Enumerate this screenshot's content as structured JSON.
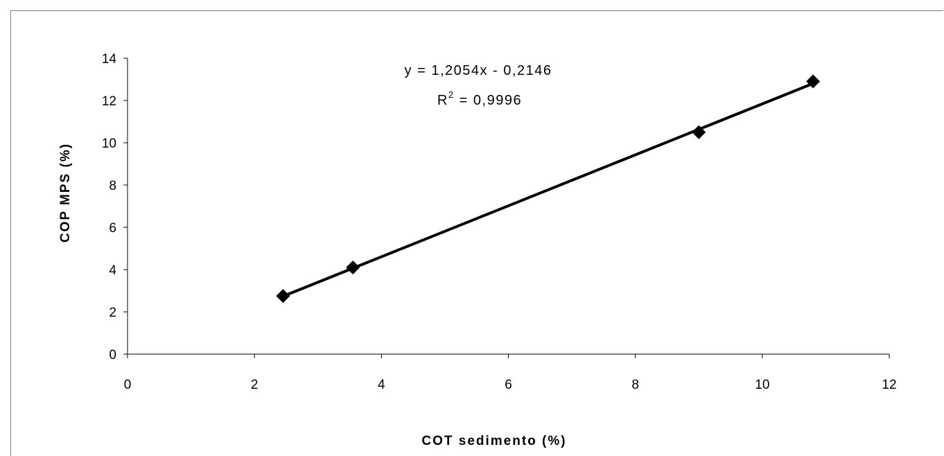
{
  "chart_data": {
    "type": "scatter",
    "xlabel": "COT sedimento (%)",
    "ylabel": "COP MPS (%)",
    "xlim": [
      0,
      12
    ],
    "ylim": [
      0,
      14
    ],
    "xticks": [
      0,
      2,
      4,
      6,
      8,
      10,
      12
    ],
    "yticks": [
      0,
      2,
      4,
      6,
      8,
      10,
      12,
      14
    ],
    "grid": false,
    "series": [
      {
        "x": [
          2.45,
          3.55,
          9.0,
          10.8
        ],
        "y": [
          2.75,
          4.1,
          10.5,
          12.9
        ],
        "marker": "diamond",
        "color": "#000000"
      }
    ],
    "trendline": {
      "type": "linear",
      "slope": 1.2054,
      "intercept": -0.2146,
      "x_range": [
        2.45,
        10.8
      ],
      "equation_label": "y = 1,2054x - 0,2146",
      "r2_prefix": "R",
      "r2_superscript": "2",
      "r2_value": " = 0,9996"
    }
  }
}
